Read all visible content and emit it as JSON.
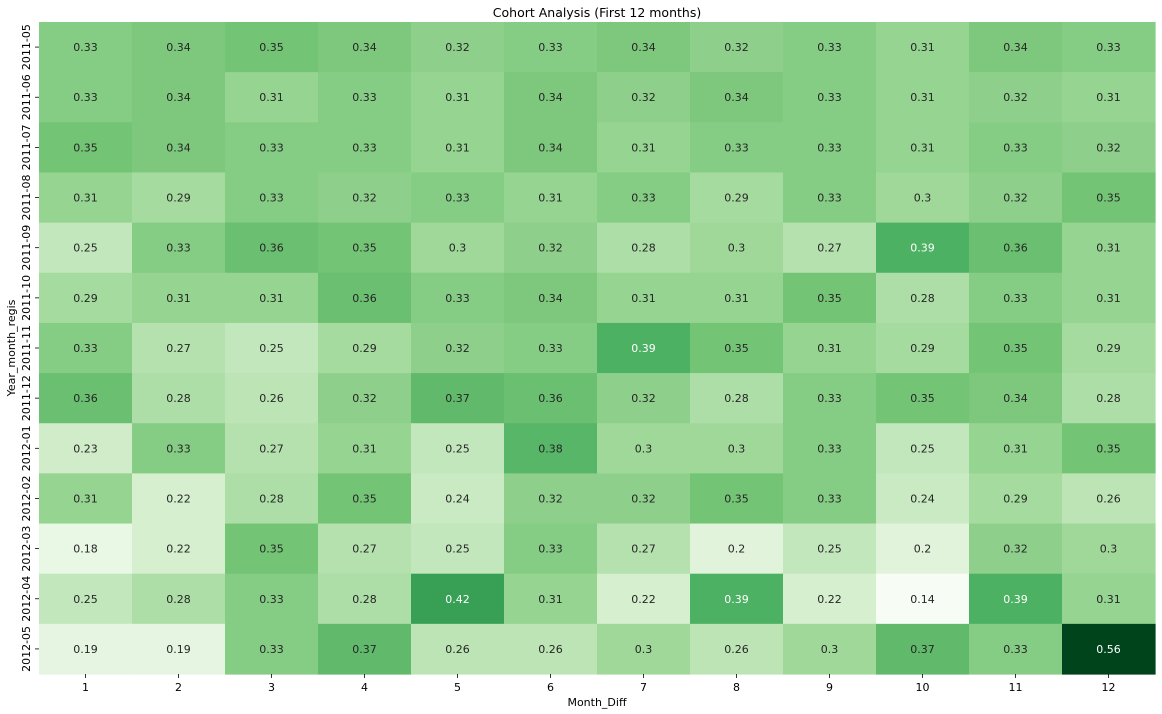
{
  "chart_data": {
    "type": "heatmap",
    "title": "Cohort Analysis (First 12 months)",
    "xlabel": "Month_Diff",
    "ylabel": "Year_month_regis",
    "x_categories": [
      "1",
      "2",
      "3",
      "4",
      "5",
      "6",
      "7",
      "8",
      "9",
      "10",
      "11",
      "12"
    ],
    "y_categories": [
      "2011-05",
      "2011-06",
      "2011-07",
      "2011-08",
      "2011-09",
      "2011-10",
      "2011-11",
      "2011-12",
      "2012-01",
      "2012-02",
      "2012-03",
      "2012-04",
      "2012-05"
    ],
    "values": [
      [
        0.33,
        0.34,
        0.35,
        0.34,
        0.32,
        0.33,
        0.34,
        0.32,
        0.33,
        0.31,
        0.34,
        0.33
      ],
      [
        0.33,
        0.34,
        0.31,
        0.33,
        0.31,
        0.34,
        0.32,
        0.34,
        0.33,
        0.31,
        0.32,
        0.31
      ],
      [
        0.35,
        0.34,
        0.33,
        0.33,
        0.31,
        0.34,
        0.31,
        0.33,
        0.33,
        0.31,
        0.33,
        0.32
      ],
      [
        0.31,
        0.29,
        0.33,
        0.32,
        0.33,
        0.31,
        0.33,
        0.29,
        0.33,
        0.3,
        0.32,
        0.35
      ],
      [
        0.25,
        0.33,
        0.36,
        0.35,
        0.3,
        0.32,
        0.28,
        0.3,
        0.27,
        0.39,
        0.36,
        0.31
      ],
      [
        0.29,
        0.31,
        0.31,
        0.36,
        0.33,
        0.34,
        0.31,
        0.31,
        0.35,
        0.28,
        0.33,
        0.31
      ],
      [
        0.33,
        0.27,
        0.25,
        0.29,
        0.32,
        0.33,
        0.39,
        0.35,
        0.31,
        0.29,
        0.35,
        0.29
      ],
      [
        0.36,
        0.28,
        0.26,
        0.32,
        0.37,
        0.36,
        0.32,
        0.28,
        0.33,
        0.35,
        0.34,
        0.28
      ],
      [
        0.23,
        0.33,
        0.27,
        0.31,
        0.25,
        0.38,
        0.3,
        0.3,
        0.33,
        0.25,
        0.31,
        0.35
      ],
      [
        0.31,
        0.22,
        0.28,
        0.35,
        0.24,
        0.32,
        0.32,
        0.35,
        0.33,
        0.24,
        0.29,
        0.26
      ],
      [
        0.18,
        0.22,
        0.35,
        0.27,
        0.25,
        0.33,
        0.27,
        0.2,
        0.25,
        0.2,
        0.32,
        0.3
      ],
      [
        0.25,
        0.28,
        0.33,
        0.28,
        0.42,
        0.31,
        0.22,
        0.39,
        0.22,
        0.14,
        0.39,
        0.31
      ],
      [
        0.19,
        0.19,
        0.33,
        0.37,
        0.26,
        0.26,
        0.3,
        0.26,
        0.3,
        0.37,
        0.33,
        0.56
      ]
    ],
    "colormap": "Greens",
    "vmin": 0.14,
    "vmax": 0.56,
    "annotated": true,
    "colorbar": false,
    "grid": false,
    "legend": "none"
  }
}
